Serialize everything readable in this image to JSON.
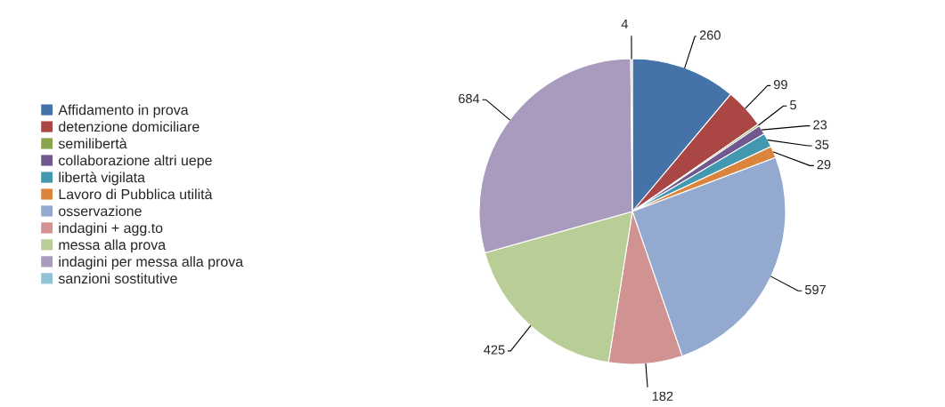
{
  "chart_data": {
    "type": "pie",
    "categories": [
      "Affidamento in prova",
      "detenzione domiciliare",
      "semilibertà",
      "collaborazione altri uepe",
      "libertà vigilata",
      "Lavoro di Pubblica utilità",
      "osservazione",
      "indagini + agg.to",
      "messa alla prova",
      "indagini per messa alla prova",
      "sanzioni sostitutive"
    ],
    "values": [
      260,
      99,
      5,
      23,
      35,
      29,
      597,
      182,
      425,
      684,
      4
    ],
    "colors": [
      "#4572a7",
      "#aa4643",
      "#89a54e",
      "#71588f",
      "#4198af",
      "#db843d",
      "#93a9cf",
      "#d19392",
      "#b9cd96",
      "#a99bbd",
      "#91c3d5"
    ],
    "data_labels": true,
    "legend": "left"
  }
}
